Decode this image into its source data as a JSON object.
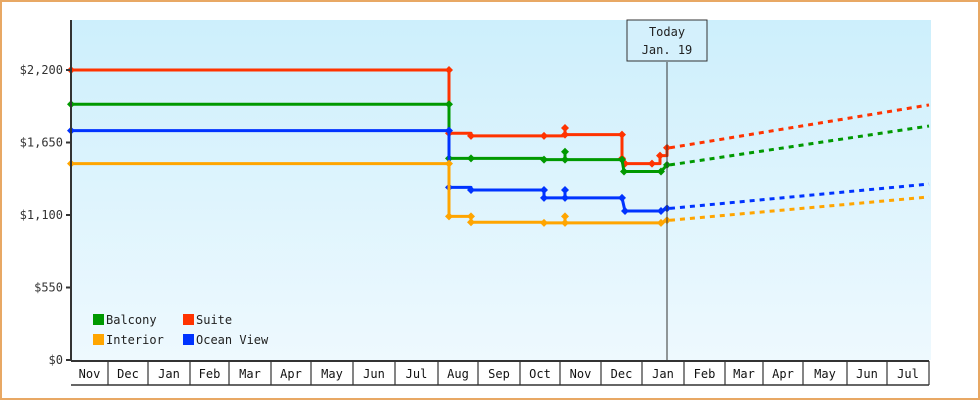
{
  "chart_data": {
    "type": "line",
    "title": "",
    "xlabel": "",
    "ylabel": "",
    "ylim": [
      0,
      2640
    ],
    "y_ticks": [
      {
        "value": 0,
        "label": "$0"
      },
      {
        "value": 550,
        "label": "$550"
      },
      {
        "value": 1100,
        "label": "$1,100"
      },
      {
        "value": 1650,
        "label": "$1,650"
      },
      {
        "value": 2200,
        "label": "$2,200"
      }
    ],
    "x_months": [
      "Nov",
      "Dec",
      "Jan",
      "Feb",
      "Mar",
      "Apr",
      "May",
      "Jun",
      "Jul",
      "Aug",
      "Sep",
      "Oct",
      "Nov",
      "Dec",
      "Jan",
      "Feb",
      "Mar",
      "Apr",
      "May",
      "Jun",
      "Jul"
    ],
    "today_marker": {
      "line1": "Today",
      "line2": "Jan. 19"
    },
    "legend": [
      {
        "name": "Balcony",
        "color": "#009900"
      },
      {
        "name": "Suite",
        "color": "#ff3300"
      },
      {
        "name": "Interior",
        "color": "#ffa500"
      },
      {
        "name": "Ocean View",
        "color": "#0033ff"
      }
    ],
    "grid": false,
    "legend_position": "bottom-left inside plot",
    "series": [
      {
        "name": "Suite",
        "color": "#ff3300",
        "points": [
          {
            "date": "Nov",
            "value": 2200
          },
          {
            "date": "Aug (early)",
            "value": 2200
          },
          {
            "date": "Aug (early)",
            "value": 1720
          },
          {
            "date": "Aug (mid)",
            "value": 1700
          },
          {
            "date": "Oct (late)",
            "value": 1700
          },
          {
            "date": "Nov (early)",
            "value": 1760
          },
          {
            "date": "Nov (early)",
            "value": 1710
          },
          {
            "date": "Dec (mid)",
            "value": 1710
          },
          {
            "date": "Dec (mid)",
            "value": 1530
          },
          {
            "date": "Dec (mid)",
            "value": 1490
          },
          {
            "date": "Jan (early)",
            "value": 1490
          },
          {
            "date": "Jan (mid)",
            "value": 1550
          },
          {
            "date": "Jan 19",
            "value": 1610
          }
        ],
        "projection": {
          "from": {
            "date": "Jan 19",
            "value": 1610
          },
          "to": {
            "date": "Jul (end)",
            "value": 1935
          },
          "style": "dashed"
        }
      },
      {
        "name": "Balcony",
        "color": "#009900",
        "points": [
          {
            "date": "Nov",
            "value": 1940
          },
          {
            "date": "Aug (early)",
            "value": 1940
          },
          {
            "date": "Aug (early)",
            "value": 1530
          },
          {
            "date": "Aug (mid)",
            "value": 1530
          },
          {
            "date": "Oct (late)",
            "value": 1520
          },
          {
            "date": "Nov (early)",
            "value": 1580
          },
          {
            "date": "Nov (early)",
            "value": 1520
          },
          {
            "date": "Dec (mid)",
            "value": 1520
          },
          {
            "date": "Dec (mid)",
            "value": 1430
          },
          {
            "date": "Jan (mid)",
            "value": 1430
          },
          {
            "date": "Jan 19",
            "value": 1480
          }
        ],
        "projection": {
          "from": {
            "date": "Jan 19",
            "value": 1480
          },
          "to": {
            "date": "Jul (end)",
            "value": 1775
          },
          "style": "dashed"
        }
      },
      {
        "name": "Ocean View",
        "color": "#0033ff",
        "points": [
          {
            "date": "Nov",
            "value": 1740
          },
          {
            "date": "Aug (early)",
            "value": 1740
          },
          {
            "date": "Aug (early)",
            "value": 1310
          },
          {
            "date": "Aug (mid)",
            "value": 1290
          },
          {
            "date": "Oct (late)",
            "value": 1290
          },
          {
            "date": "Oct (late)",
            "value": 1230
          },
          {
            "date": "Nov (early)",
            "value": 1290
          },
          {
            "date": "Nov (early)",
            "value": 1230
          },
          {
            "date": "Dec (mid)",
            "value": 1230
          },
          {
            "date": "Dec (mid)",
            "value": 1130
          },
          {
            "date": "Jan (mid)",
            "value": 1130
          },
          {
            "date": "Jan 19",
            "value": 1150
          }
        ],
        "projection": {
          "from": {
            "date": "Jan 19",
            "value": 1150
          },
          "to": {
            "date": "Jul (end)",
            "value": 1335
          },
          "style": "dashed"
        }
      },
      {
        "name": "Interior",
        "color": "#ffa500",
        "points": [
          {
            "date": "Nov",
            "value": 1490
          },
          {
            "date": "Aug (early)",
            "value": 1490
          },
          {
            "date": "Aug (early)",
            "value": 1090
          },
          {
            "date": "Aug (mid)",
            "value": 1090
          },
          {
            "date": "Aug (mid)",
            "value": 1045
          },
          {
            "date": "Oct (late)",
            "value": 1040
          },
          {
            "date": "Nov (early)",
            "value": 1090
          },
          {
            "date": "Nov (early)",
            "value": 1040
          },
          {
            "date": "Jan (mid)",
            "value": 1040
          },
          {
            "date": "Jan 19",
            "value": 1060
          }
        ],
        "projection": {
          "from": {
            "date": "Jan 19",
            "value": 1060
          },
          "to": {
            "date": "Jul (end)",
            "value": 1237
          },
          "style": "dashed"
        }
      }
    ]
  }
}
